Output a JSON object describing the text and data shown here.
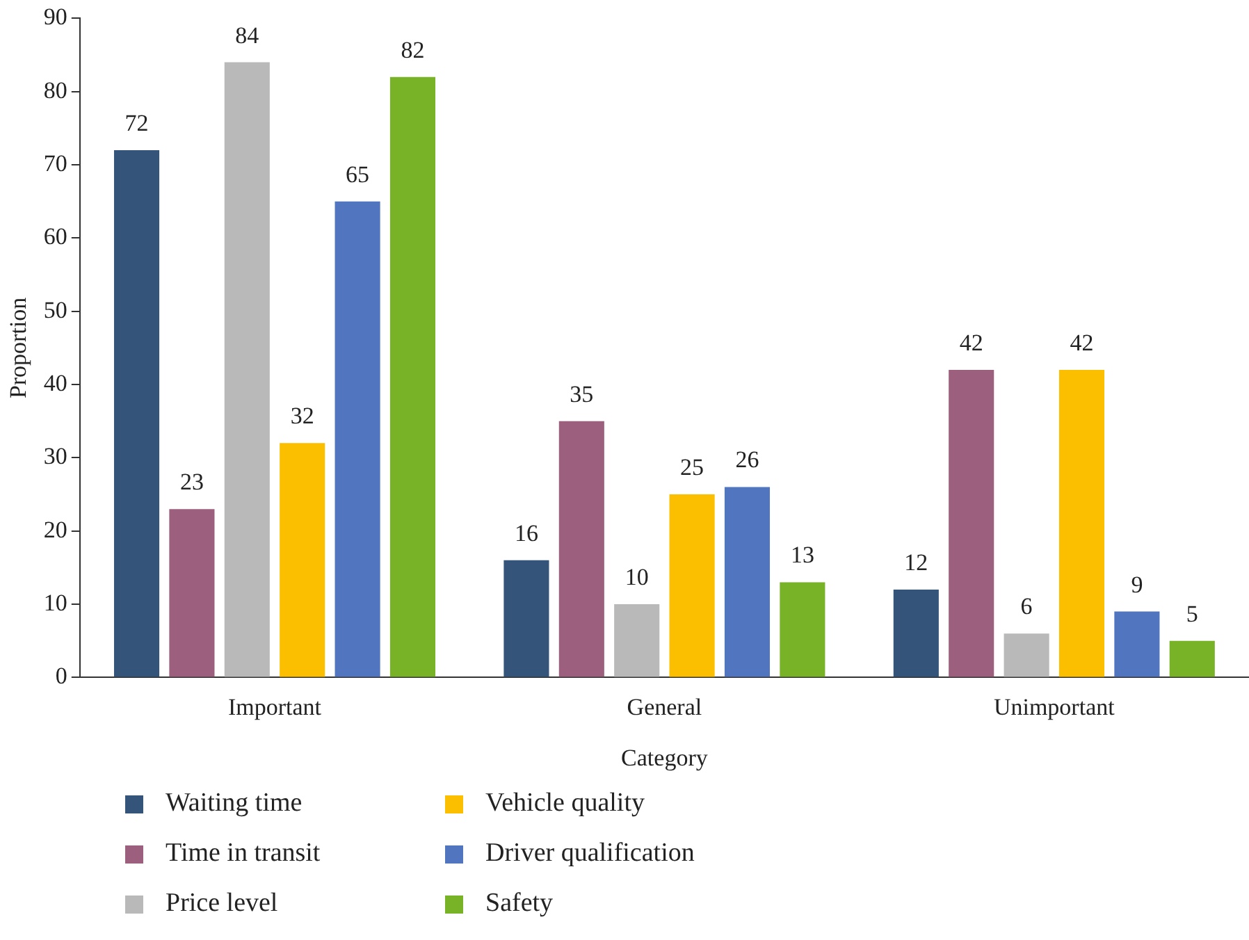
{
  "chart_data": {
    "type": "bar",
    "xlabel": "Category",
    "ylabel": "Proportion",
    "categories": [
      "Important",
      "General",
      "Unimportant"
    ],
    "series": [
      {
        "name": "Waiting time",
        "color": "#34547a",
        "values": [
          72,
          16,
          12
        ]
      },
      {
        "name": "Time in transit",
        "color": "#9c5f7d",
        "values": [
          23,
          35,
          42
        ]
      },
      {
        "name": "Price level",
        "color": "#b9b9b9",
        "values": [
          84,
          10,
          6
        ]
      },
      {
        "name": "Vehicle quality",
        "color": "#fbbf00",
        "values": [
          32,
          25,
          42
        ]
      },
      {
        "name": "Driver qualification",
        "color": "#5275c0",
        "values": [
          65,
          26,
          9
        ]
      },
      {
        "name": "Safety",
        "color": "#78b226",
        "values": [
          82,
          13,
          5
        ]
      }
    ],
    "ylim": [
      0,
      90
    ],
    "yticks": [
      0,
      10,
      20,
      30,
      40,
      50,
      60,
      70,
      80,
      90
    ],
    "grid": false,
    "legend": "bottom",
    "data_labels": true
  }
}
